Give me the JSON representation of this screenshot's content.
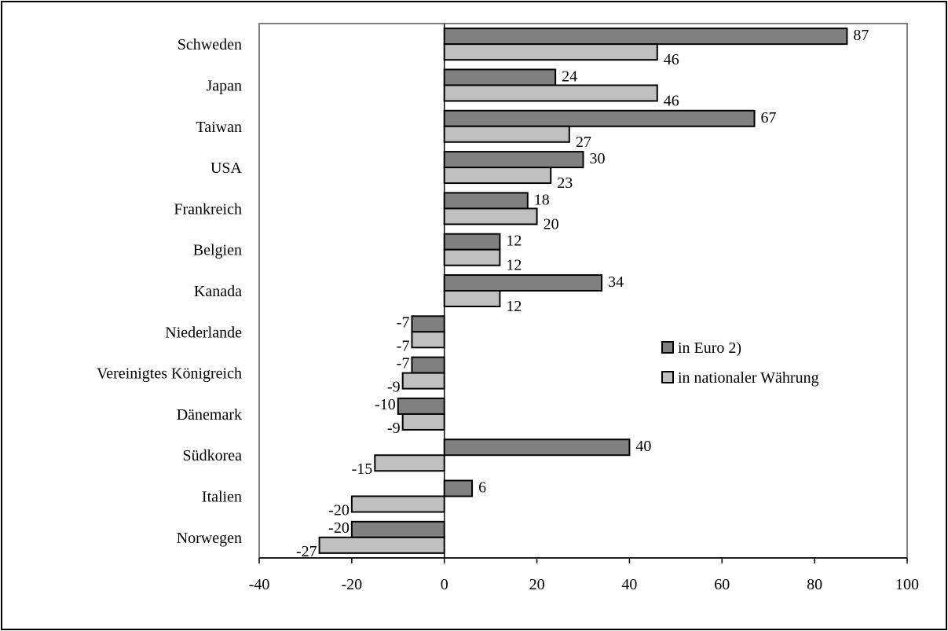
{
  "chart_data": {
    "type": "bar",
    "orientation": "horizontal",
    "categories": [
      "Schweden",
      "Japan",
      "Taiwan",
      "USA",
      "Frankreich",
      "Belgien",
      "Kanada",
      "Niederlande",
      "Vereinigtes Königreich",
      "Dänemark",
      "Südkorea",
      "Italien",
      "Norwegen"
    ],
    "series": [
      {
        "name": "in Euro 2)",
        "values": [
          87,
          24,
          67,
          30,
          18,
          12,
          34,
          -7,
          -7,
          -10,
          40,
          6,
          -20
        ],
        "color": "#808080"
      },
      {
        "name": "in nationaler Währung",
        "values": [
          46,
          46,
          27,
          23,
          20,
          12,
          12,
          -7,
          -9,
          -9,
          -15,
          -20,
          -27
        ],
        "color": "#c0c0c0"
      }
    ],
    "xlim": [
      -40,
      100
    ],
    "xticks": [
      -40,
      -20,
      0,
      20,
      40,
      60,
      80,
      100
    ],
    "grid": false,
    "legend_position": "right-center"
  }
}
